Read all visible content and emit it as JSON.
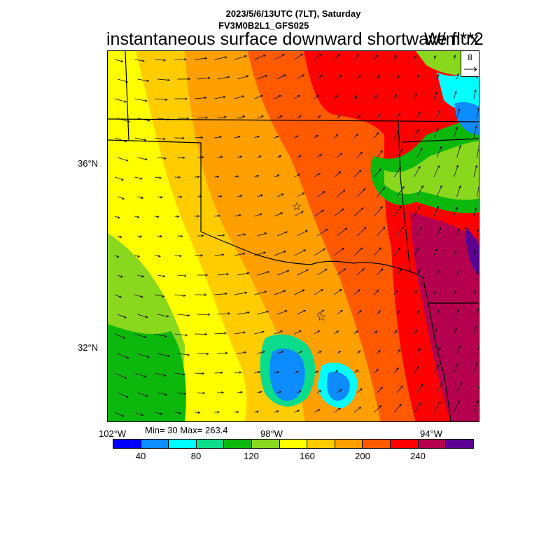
{
  "header": {
    "datetime": "2023/5/6/13UTC (7LT), Saturday",
    "model": "FV3M0B2L1_GFS025",
    "title": "instantaneous surface downward shortwave flux",
    "units": "W/m**2"
  },
  "axes": {
    "lat_labels": [
      "36°N",
      "32°N"
    ],
    "lon_labels": [
      "102°W",
      "98°W",
      "94°W"
    ]
  },
  "stats": {
    "text": "Min= 30 Max= 263.4"
  },
  "reference_vector": {
    "label": "8"
  },
  "colorbar": {
    "colors": [
      "#0000ff",
      "#0c8cff",
      "#00ffff",
      "#0adc8c",
      "#0cb80c",
      "#8ad81e",
      "#ffff00",
      "#ffcc00",
      "#ff9f00",
      "#ff5a00",
      "#ff0000",
      "#b4004e",
      "#5c0094"
    ],
    "tick_labels": [
      "40",
      "80",
      "120",
      "160",
      "200",
      "240"
    ]
  },
  "map_markers": [
    "star-icon",
    "star-icon"
  ]
}
